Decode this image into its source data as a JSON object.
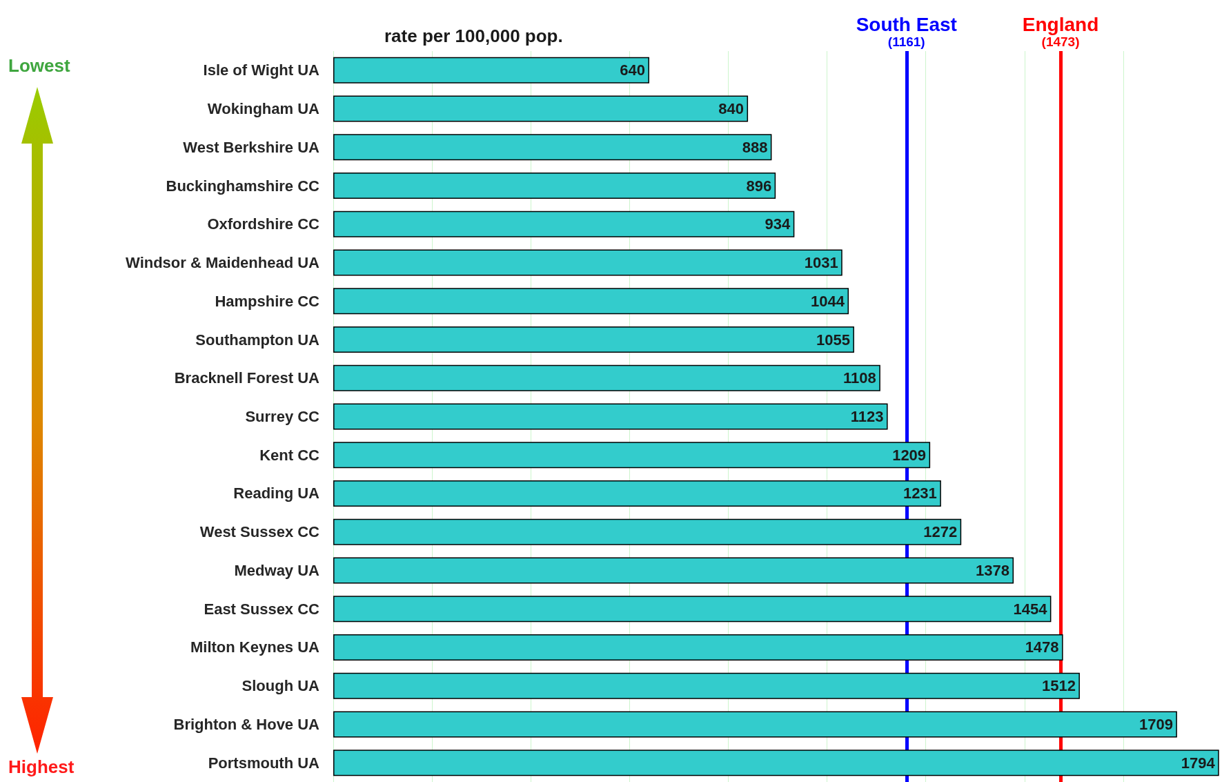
{
  "chart_data": {
    "type": "bar",
    "orientation": "horizontal",
    "title": "rate per 100,000 pop.",
    "categories": [
      "Isle of Wight UA",
      "Wokingham UA",
      "West Berkshire UA",
      "Buckinghamshire CC",
      "Oxfordshire CC",
      "Windsor & Maidenhead UA",
      "Hampshire CC",
      "Southampton UA",
      "Bracknell Forest UA",
      "Surrey CC",
      "Kent CC",
      "Reading UA",
      "West Sussex CC",
      "Medway UA",
      "East Sussex CC",
      "Milton Keynes UA",
      "Slough UA",
      "Brighton & Hove UA",
      "Portsmouth UA"
    ],
    "values": [
      640,
      840,
      888,
      896,
      934,
      1031,
      1044,
      1055,
      1108,
      1123,
      1209,
      1231,
      1272,
      1378,
      1454,
      1478,
      1512,
      1709,
      1794
    ],
    "color": "#33cccc",
    "data_labels": true,
    "xlim": [
      0,
      1800
    ],
    "xticks": [
      {
        "value": 0,
        "label": null
      },
      {
        "value": 200,
        "label": null
      },
      {
        "value": 400,
        "label": null
      },
      {
        "value": 600,
        "label": null
      },
      {
        "value": 800,
        "label": null
      },
      {
        "value": 1000,
        "label": null
      },
      {
        "value": 1200,
        "label": null
      },
      {
        "value": 1400,
        "label": null
      },
      {
        "value": 1600,
        "label": null
      },
      {
        "value": 1800,
        "label": null
      }
    ],
    "tick_labels": "y",
    "grid": "x",
    "ref_lines": [
      {
        "axis": "x",
        "value": 1161,
        "label": "South East\n(1161)",
        "color": "#0000ff"
      },
      {
        "axis": "x",
        "value": 1473,
        "label": "England\n(1473)",
        "color": "#ff0000"
      }
    ],
    "annotations": [
      "Lowest",
      "Highest"
    ]
  }
}
